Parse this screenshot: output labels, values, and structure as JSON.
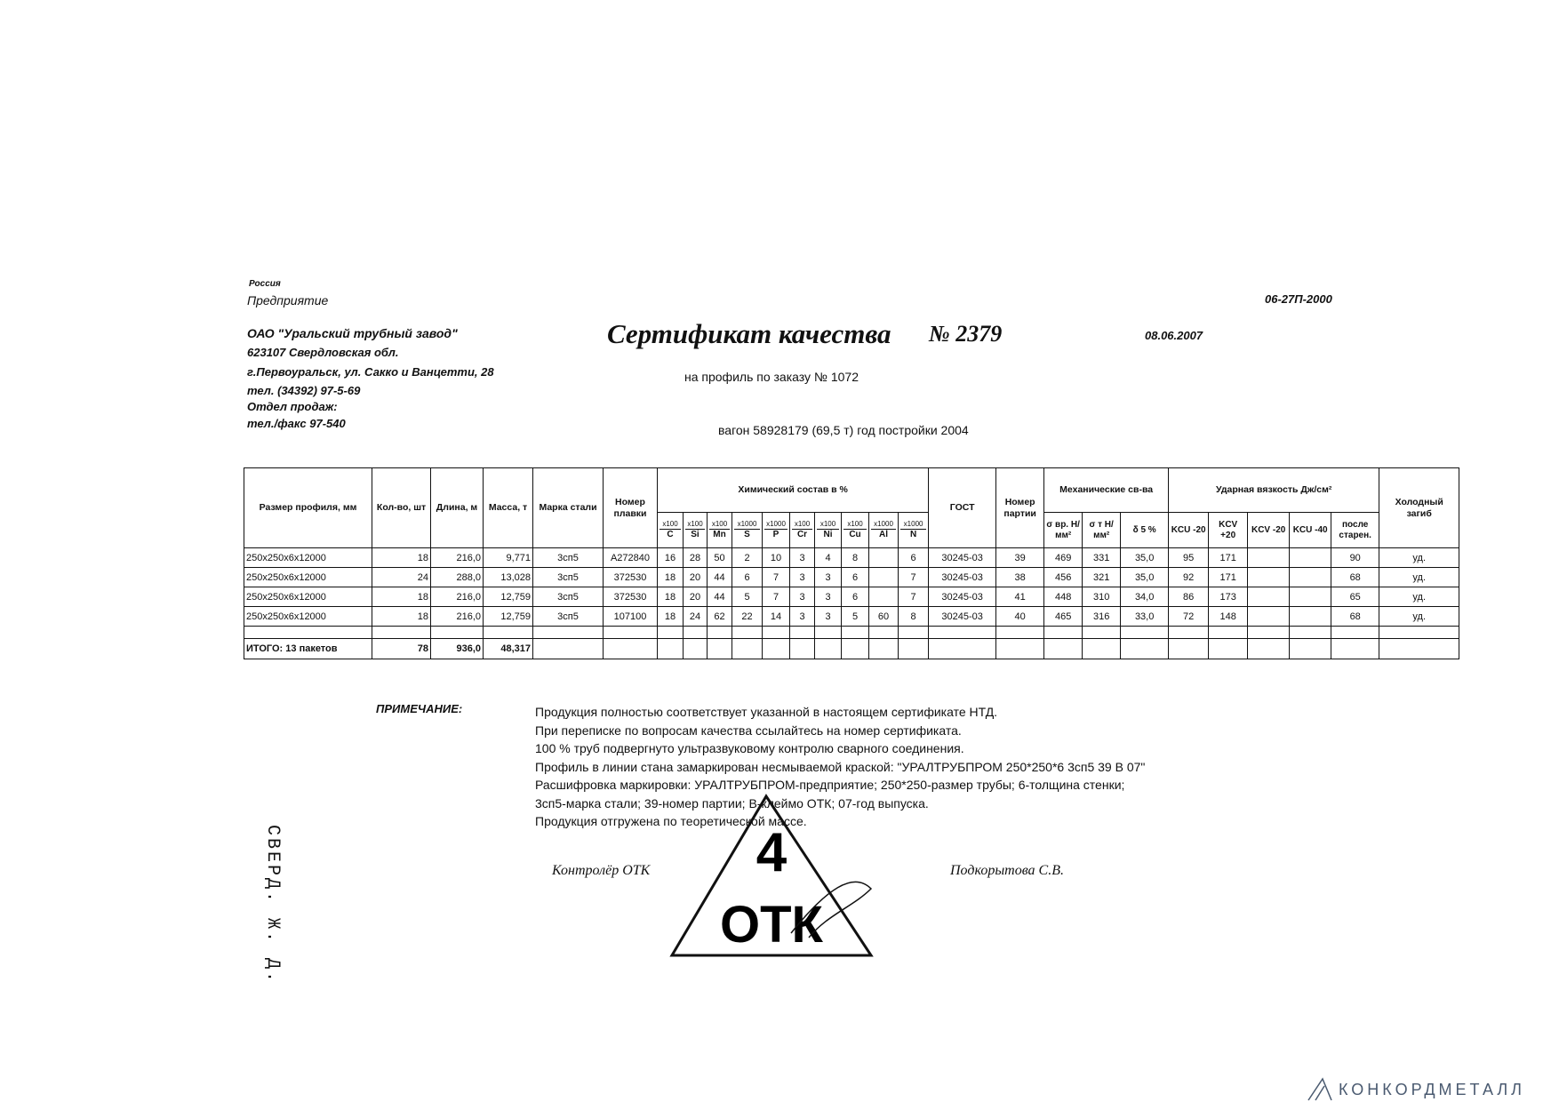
{
  "header": {
    "country": "Россия",
    "enterprise_label": "Предприятие",
    "company": "ОАО \"Уральский трубный завод\"",
    "address_lines": [
      "623107 Свердловская обл.",
      "г.Первоуральск, ул. Сакко и Ванцетти, 28"
    ],
    "phone": "тел. (34392) 97-5-69",
    "sales_label": "Отдел продаж:",
    "fax": "тел./факс 97-540"
  },
  "certificate": {
    "code": "06-27П-2000",
    "title": "Сертификат качества",
    "number": "№ 2379",
    "date": "08.06.2007",
    "order": "на профиль по заказу № 1072",
    "wagon": "вагон 58928179 (69,5 т) год постройки 2004"
  },
  "table": {
    "header_groups": [
      {
        "label": "Размер профиля, мм"
      },
      {
        "label": "Кол-во, шт"
      },
      {
        "label": "Длина, м"
      },
      {
        "label": "Масса, т"
      },
      {
        "label": "Марка стали"
      },
      {
        "label": "Номер плавки"
      },
      {
        "label": "Химический состав в %",
        "sub": [
          {
            "factor": "x100",
            "name": "C"
          },
          {
            "factor": "x100",
            "name": "Si"
          },
          {
            "factor": "x100",
            "name": "Mn"
          },
          {
            "factor": "x1000",
            "name": "S"
          },
          {
            "factor": "x1000",
            "name": "P"
          },
          {
            "factor": "x100",
            "name": "Cr"
          },
          {
            "factor": "x100",
            "name": "Ni"
          },
          {
            "factor": "x100",
            "name": "Cu"
          },
          {
            "factor": "x1000",
            "name": "Al"
          },
          {
            "factor": "x1000",
            "name": "N"
          }
        ]
      },
      {
        "label": "ГОСТ"
      },
      {
        "label": "Номер партии"
      },
      {
        "label": "Механические св-ва",
        "sub": [
          {
            "name": "σ вр. Н/мм²"
          },
          {
            "name": "σ т Н/мм²"
          },
          {
            "name": "δ 5 %"
          }
        ]
      },
      {
        "label": "Ударная вязкость Дж/см²",
        "sub": [
          {
            "name": "KCU -20"
          },
          {
            "name": "KCV +20"
          },
          {
            "name": "KCV -20"
          },
          {
            "name": "KCU -40"
          },
          {
            "name": "после старен."
          }
        ]
      },
      {
        "label": "Холодный загиб"
      }
    ],
    "rows": [
      [
        "250x250x6x12000",
        "18",
        "216,0",
        "9,771",
        "3сп5",
        "А272840",
        "16",
        "28",
        "50",
        "2",
        "10",
        "3",
        "4",
        "8",
        null,
        "6",
        "30245-03",
        "39",
        "469",
        "331",
        "35,0",
        "95",
        "171",
        null,
        null,
        "90",
        "уд."
      ],
      [
        "250x250x6x12000",
        "24",
        "288,0",
        "13,028",
        "3сп5",
        "372530",
        "18",
        "20",
        "44",
        "6",
        "7",
        "3",
        "3",
        "6",
        null,
        "7",
        "30245-03",
        "38",
        "456",
        "321",
        "35,0",
        "92",
        "171",
        null,
        null,
        "68",
        "уд."
      ],
      [
        "250x250x6x12000",
        "18",
        "216,0",
        "12,759",
        "3сп5",
        "372530",
        "18",
        "20",
        "44",
        "5",
        "7",
        "3",
        "3",
        "6",
        null,
        "7",
        "30245-03",
        "41",
        "448",
        "310",
        "34,0",
        "86",
        "173",
        null,
        null,
        "65",
        "уд."
      ],
      [
        "250x250x6x12000",
        "18",
        "216,0",
        "12,759",
        "3сп5",
        "107100",
        "18",
        "24",
        "62",
        "22",
        "14",
        "3",
        "3",
        "5",
        "60",
        "8",
        "30245-03",
        "40",
        "465",
        "316",
        "33,0",
        "72",
        "148",
        null,
        null,
        "68",
        "уд."
      ]
    ],
    "total": [
      "ИТОГО: 13 пакетов",
      "78",
      "936,0",
      "48,317"
    ]
  },
  "notes": {
    "label": "ПРИМЕЧАНИЕ:",
    "lines": [
      "Продукция полностью соответствует указанной в настоящем сертификате НТД.",
      "При переписке по вопросам качества ссылайтесь на номер сертификата.",
      "100 % труб подвергнуто ультразвуковому контролю сварного соединения.",
      "Профиль в линии стана замаркирован несмываемой краской: \"УРАЛТРУБПРОМ 250*250*6 3сп5 39 В 07\"",
      "Расшифровка маркировки: УРАЛТРУБПРОМ-предприятие; 250*250-размер трубы; 6-толщина стенки;",
      "3сп5-марка стали; 39-номер партии; В-клеймо ОТК; 07-год выпуска.",
      "Продукция отгружена по теоретической массе."
    ]
  },
  "signatures": {
    "role": "Контролёр ОТК",
    "name": "Подкорытова С.В."
  },
  "stamp": {
    "number": "4",
    "text": "ОТК"
  },
  "side_stamp": "СВЕРД. Ж. Д.",
  "watermark": "КОНКОРДМЕТАЛЛ"
}
